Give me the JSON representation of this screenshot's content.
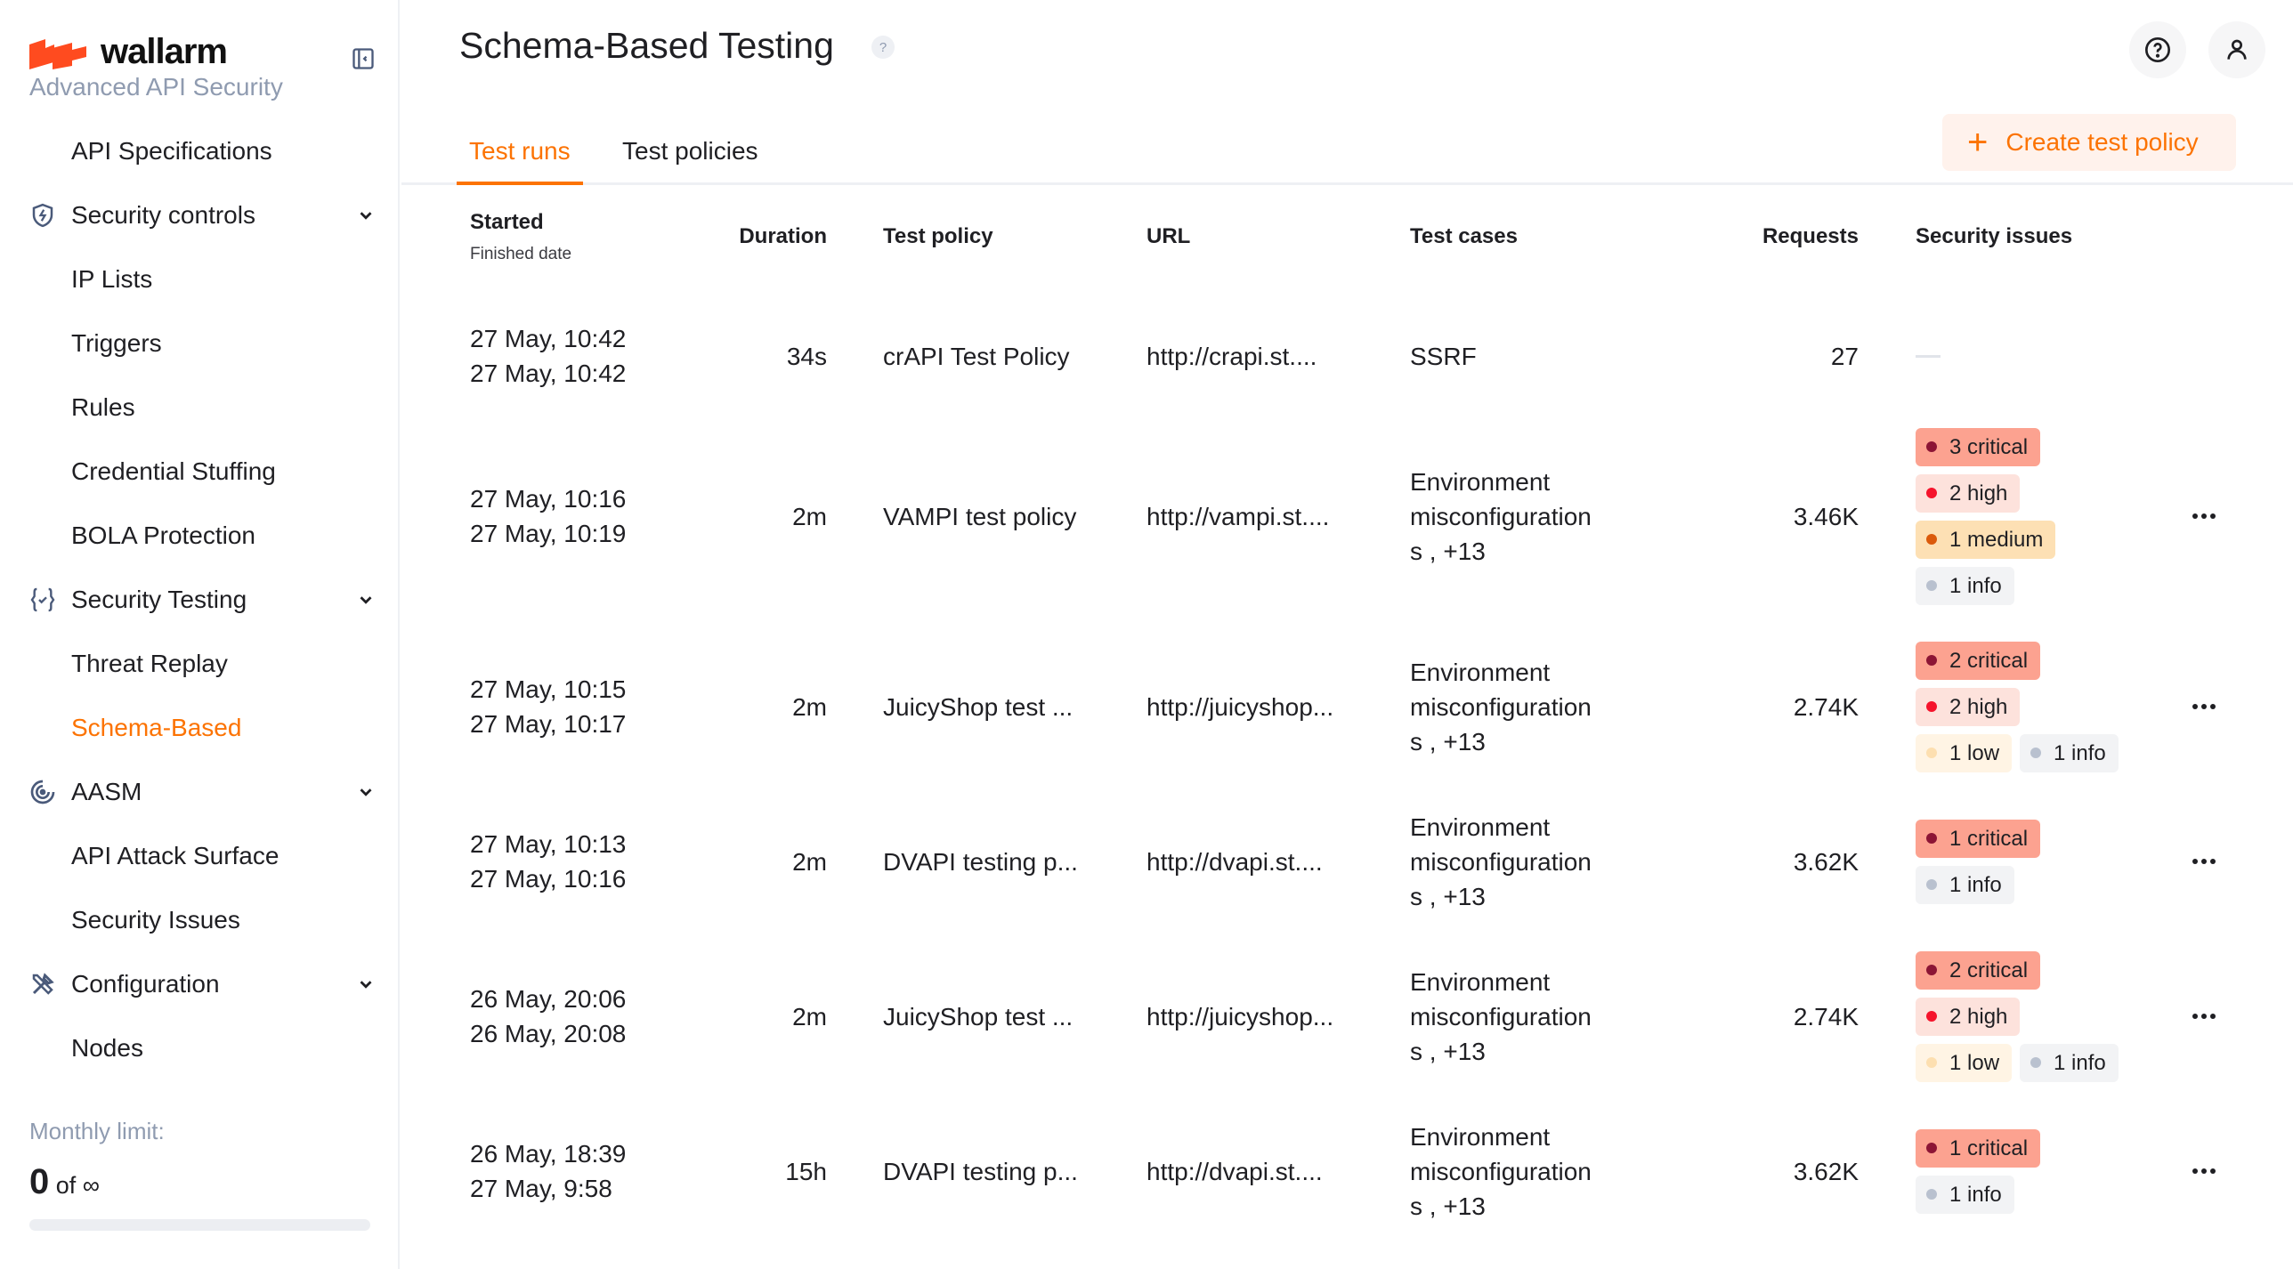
{
  "brand": {
    "name": "wallarm",
    "subtitle": "Advanced API Security"
  },
  "sidebar": {
    "items": [
      {
        "label": "API Specifications",
        "type": "item"
      },
      {
        "label": "Security controls",
        "type": "group",
        "icon": "shield-bolt-icon"
      },
      {
        "label": "IP Lists",
        "type": "item"
      },
      {
        "label": "Triggers",
        "type": "item"
      },
      {
        "label": "Rules",
        "type": "item"
      },
      {
        "label": "Credential Stuffing",
        "type": "item"
      },
      {
        "label": "BOLA Protection",
        "type": "item"
      },
      {
        "label": "Security Testing",
        "type": "group",
        "icon": "braces-check-icon"
      },
      {
        "label": "Threat Replay",
        "type": "item"
      },
      {
        "label": "Schema-Based",
        "type": "item",
        "active": true
      },
      {
        "label": "AASM",
        "type": "group",
        "icon": "radar-icon"
      },
      {
        "label": "API Attack Surface",
        "type": "item"
      },
      {
        "label": "Security Issues",
        "type": "item"
      },
      {
        "label": "Configuration",
        "type": "group",
        "icon": "tools-icon"
      },
      {
        "label": "Nodes",
        "type": "item"
      }
    ],
    "monthly_limit": {
      "label": "Monthly limit:",
      "used": "0",
      "of": "of ∞",
      "progress": 0
    }
  },
  "header": {
    "title": "Schema-Based Testing",
    "help_glyph": "?"
  },
  "tabs": [
    {
      "label": "Test runs",
      "active": true
    },
    {
      "label": "Test policies"
    }
  ],
  "create_button": {
    "label": "Create test policy",
    "icon": "+"
  },
  "table": {
    "headers": {
      "started": "Started",
      "finished": "Finished date",
      "duration": "Duration",
      "policy": "Test policy",
      "url": "URL",
      "cases": "Test cases",
      "requests": "Requests",
      "issues": "Security issues"
    },
    "rows": [
      {
        "started": "27 May, 10:42",
        "finished": "27 May, 10:42",
        "duration": "34s",
        "policy": "crAPI Test Policy",
        "url": "http://crapi.st....",
        "cases": [
          "SSRF"
        ],
        "requests": "27",
        "issues": []
      },
      {
        "started": "27 May, 10:16",
        "finished": "27 May, 10:19",
        "duration": "2m",
        "policy": "VAMPI test policy",
        "url": "http://vampi.st....",
        "cases": [
          "Environment",
          "misconfiguration",
          "s , +13"
        ],
        "requests": "3.46K",
        "issues": [
          [
            {
              "label": "3 critical",
              "level": "critical"
            }
          ],
          [
            {
              "label": "2 high",
              "level": "high"
            }
          ],
          [
            {
              "label": "1 medium",
              "level": "medium"
            }
          ],
          [
            {
              "label": "1 info",
              "level": "info"
            }
          ]
        ]
      },
      {
        "started": "27 May, 10:15",
        "finished": "27 May, 10:17",
        "duration": "2m",
        "policy": "JuicyShop test ...",
        "url": "http://juicyshop...",
        "cases": [
          "Environment",
          "misconfiguration",
          "s , +13"
        ],
        "requests": "2.74K",
        "issues": [
          [
            {
              "label": "2 critical",
              "level": "critical"
            }
          ],
          [
            {
              "label": "2 high",
              "level": "high"
            }
          ],
          [
            {
              "label": "1 low",
              "level": "low"
            },
            {
              "label": "1 info",
              "level": "info"
            }
          ]
        ]
      },
      {
        "started": "27 May, 10:13",
        "finished": "27 May, 10:16",
        "duration": "2m",
        "policy": "DVAPI testing p...",
        "url": "http://dvapi.st....",
        "cases": [
          "Environment",
          "misconfiguration",
          "s , +13"
        ],
        "requests": "3.62K",
        "issues": [
          [
            {
              "label": "1 critical",
              "level": "critical"
            }
          ],
          [
            {
              "label": "1 info",
              "level": "info"
            }
          ]
        ]
      },
      {
        "started": "26 May, 20:06",
        "finished": "26 May, 20:08",
        "duration": "2m",
        "policy": "JuicyShop test ...",
        "url": "http://juicyshop...",
        "cases": [
          "Environment",
          "misconfiguration",
          "s , +13"
        ],
        "requests": "2.74K",
        "issues": [
          [
            {
              "label": "2 critical",
              "level": "critical"
            }
          ],
          [
            {
              "label": "2 high",
              "level": "high"
            }
          ],
          [
            {
              "label": "1 low",
              "level": "low"
            },
            {
              "label": "1 info",
              "level": "info"
            }
          ]
        ]
      },
      {
        "started": "26 May, 18:39",
        "finished": "27 May, 9:58",
        "duration": "15h",
        "policy": "DVAPI testing p...",
        "url": "http://dvapi.st....",
        "cases": [
          "Environment",
          "misconfiguration",
          "s , +13"
        ],
        "requests": "3.62K",
        "issues": [
          [
            {
              "label": "1 critical",
              "level": "critical"
            }
          ],
          [
            {
              "label": "1 info",
              "level": "info"
            }
          ]
        ]
      }
    ]
  },
  "colors": {
    "accent": "#fc7303",
    "critical_bg": "#fca290",
    "critical_dot": "#8c1535",
    "high_bg": "#fde2dc",
    "high_dot": "#f5142c",
    "medium_bg": "#fde0b4",
    "medium_dot": "#db5a0b",
    "low_bg": "#fff4e4",
    "low_dot": "#fddfb0",
    "info_bg": "#f2f3f5",
    "info_dot": "#b9c1cf"
  }
}
